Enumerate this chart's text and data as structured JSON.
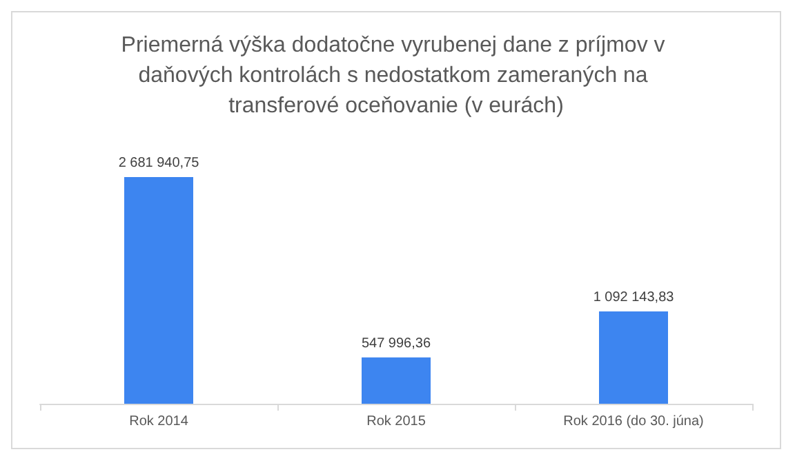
{
  "chart_data": {
    "type": "bar",
    "title": "Priemerná výška dodatočne vyrubenej dane z príjmov v daňových kontrolách s nedostatkom zameraných na transferové oceňovanie (v eurách)",
    "categories": [
      "Rok 2014",
      "Rok 2015",
      "Rok 2016 (do 30. júna)"
    ],
    "values": [
      2681940.75,
      547996.36,
      1092143.83
    ],
    "value_labels": [
      "2 681 940,75",
      "547 996,36",
      "1 092 143,83"
    ],
    "color": "#3d85f0",
    "grid": false
  }
}
